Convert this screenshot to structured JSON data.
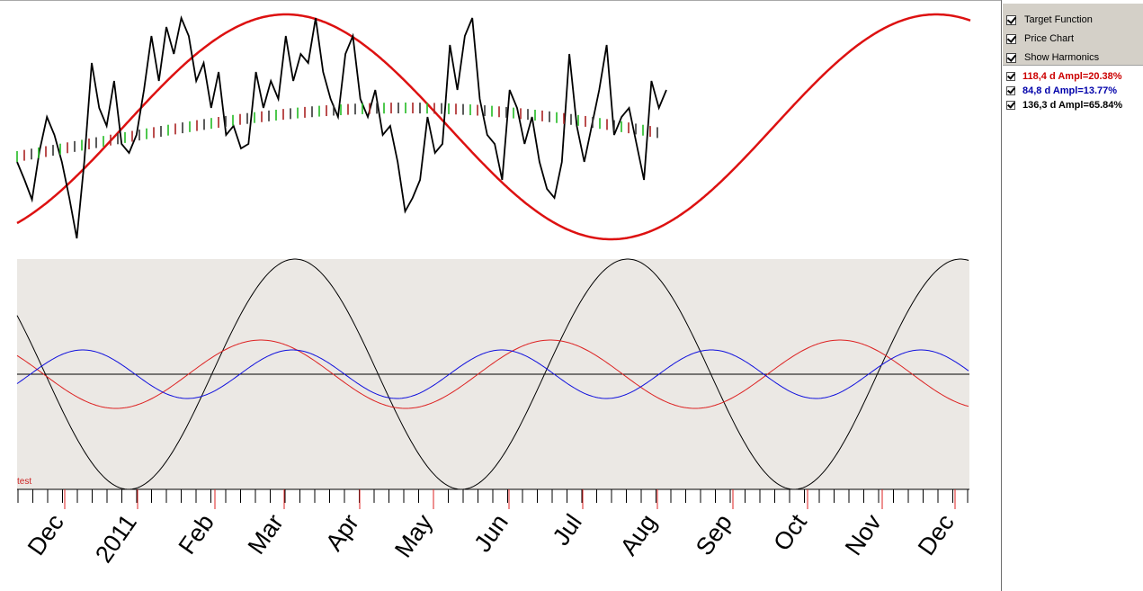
{
  "colors": {
    "target_function": "#dd1111",
    "price": "#000000",
    "harmonic_red": "#dd2222",
    "harmonic_blue": "#1010dd",
    "harmonic_black": "#000000",
    "lower_panel_bg": "#ebe8e4",
    "month_tick": "#dd2222"
  },
  "options": [
    {
      "label": "Target Function",
      "checked": true
    },
    {
      "label": "Price Chart",
      "checked": true
    },
    {
      "label": "Show Harmonics",
      "checked": true
    }
  ],
  "harmonics": [
    {
      "label": "118,4 d  Ampl=20.38%",
      "checked": true,
      "color": "#cc0000"
    },
    {
      "label": "84,8 d  Ampl=13.77%",
      "checked": true,
      "color": "#0000aa"
    },
    {
      "label": "136,3 d  Ampl=65.84%",
      "checked": true,
      "color": "#000000"
    }
  ],
  "lower_panel": {
    "caption": "test"
  },
  "time_axis": {
    "labels": [
      "Dec",
      "2011",
      "Feb",
      "Mar",
      "Apr",
      "May",
      "Jun",
      "Jul",
      "Aug",
      "Sep",
      "Oct",
      "Nov",
      "Dec"
    ]
  }
}
